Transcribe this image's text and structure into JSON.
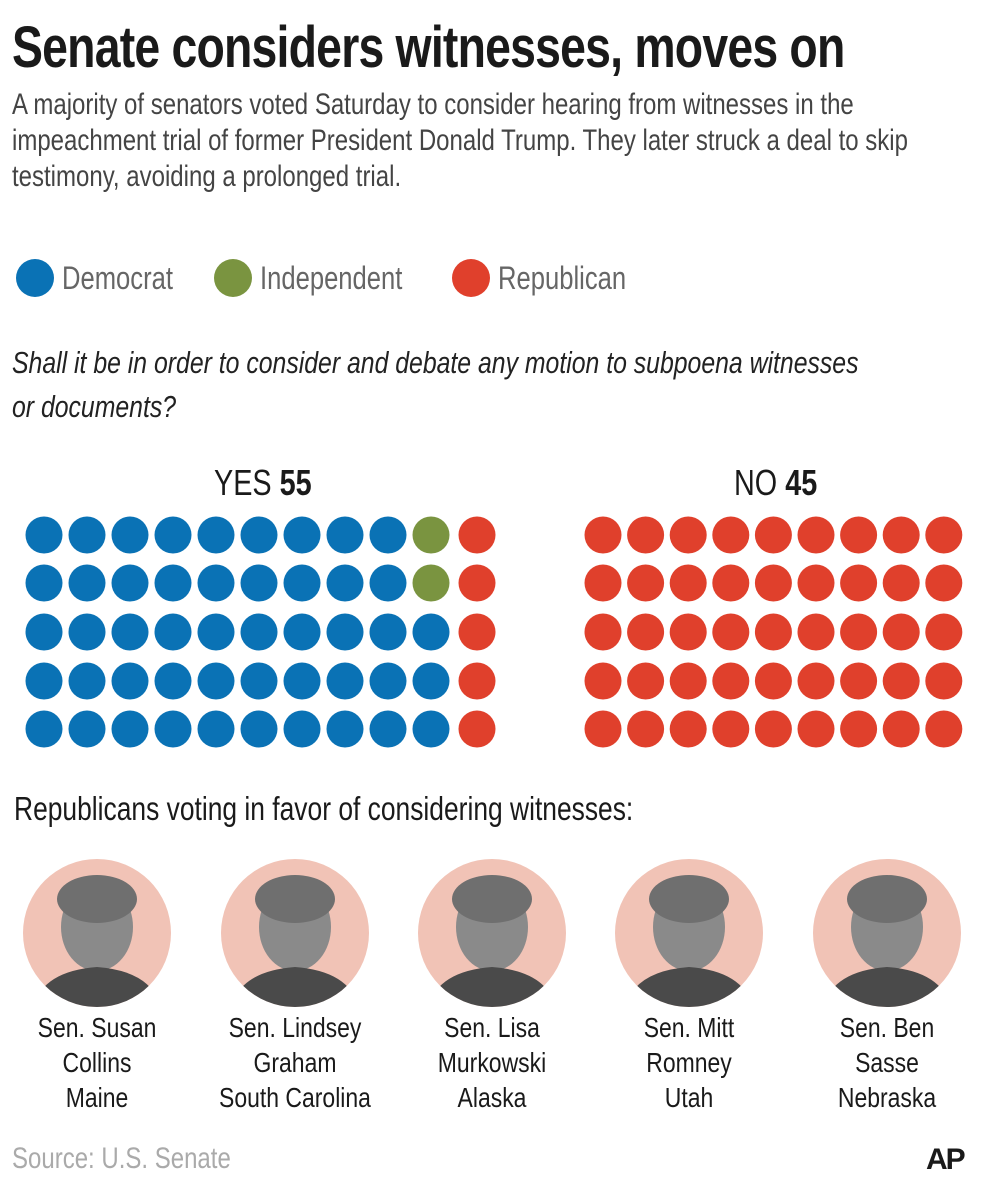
{
  "title": "Senate considers witnesses, moves on",
  "subtitle_lines": [
    "A majority of senators voted Saturday to consider hearing from witnesses in the",
    "impeachment trial of former President Donald Trump. They later struck a deal to skip",
    "testimony, avoiding a prolonged trial."
  ],
  "legend": [
    {
      "label": "Democrat",
      "color": "#0a72b5"
    },
    {
      "label": "Independent",
      "color": "#7a9440"
    },
    {
      "label": "Republican",
      "color": "#e0402c"
    }
  ],
  "question_lines": [
    "Shall it be in order to consider and debate any motion to subpoena witnesses",
    "or documents?"
  ],
  "chart_data": {
    "type": "dot",
    "groups": [
      {
        "label": "YES",
        "total": "55",
        "democrat": 48,
        "independent": 2,
        "republican": 5,
        "rows": 5,
        "columns": 11
      },
      {
        "label": "NO",
        "total": "45",
        "democrat": 0,
        "independent": 0,
        "republican": 45,
        "rows": 5,
        "columns": 9
      }
    ]
  },
  "republicans_heading": "Republicans voting in favor of considering witnesses:",
  "senators": [
    {
      "lines": [
        "Sen. Susan",
        "Collins",
        "Maine"
      ]
    },
    {
      "lines": [
        "Sen. Lindsey",
        "Graham",
        "South Carolina"
      ]
    },
    {
      "lines": [
        "Sen. Lisa",
        "Murkowski",
        "Alaska"
      ]
    },
    {
      "lines": [
        "Sen. Mitt Romney",
        "Utah"
      ]
    },
    {
      "lines": [
        "Sen. Ben Sasse",
        "Nebraska"
      ]
    }
  ],
  "source": "Source: U.S. Senate",
  "logo": "AP"
}
